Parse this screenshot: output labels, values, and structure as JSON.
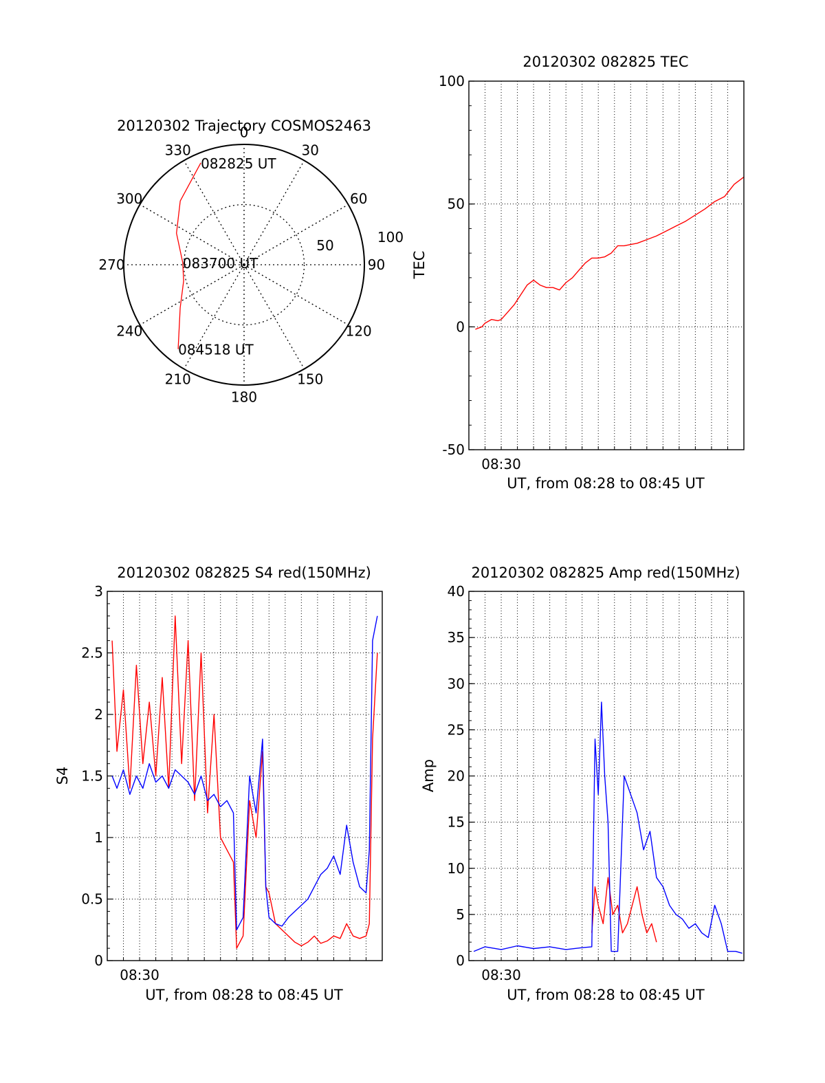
{
  "colors": {
    "red": "#ff0000",
    "blue": "#0000ff",
    "axis": "#000000",
    "grid": "#000000"
  },
  "chart_data": [
    {
      "type": "polar",
      "title": "20120302 Trajectory COSMOS2463",
      "angle_labels": [
        "0",
        "30",
        "60",
        "90",
        "120",
        "150",
        "180",
        "210",
        "240",
        "270",
        "300",
        "330"
      ],
      "radius_labels": [
        "50",
        "100"
      ],
      "radius_max": 100,
      "track_color": "red",
      "track": [
        {
          "az": 337,
          "r": 92
        },
        {
          "az": 315,
          "r": 75
        },
        {
          "az": 295,
          "r": 62
        },
        {
          "az": 272,
          "r": 51
        },
        {
          "az": 255,
          "r": 52
        },
        {
          "az": 236,
          "r": 64
        },
        {
          "az": 218,
          "r": 89
        }
      ],
      "annotations": [
        {
          "text": "082825 UT",
          "az": 337,
          "r": 92
        },
        {
          "text": "083700 UT",
          "az": 272,
          "r": 51
        },
        {
          "text": "084518 UT",
          "az": 218,
          "r": 89
        }
      ]
    },
    {
      "type": "line",
      "title": "20120302 082825 TEC",
      "xlabel": "UT, from 08:28 to 08:45 UT",
      "ylabel": "TEC",
      "x_unit": "minutes after 08:28",
      "xlim": [
        0,
        17
      ],
      "ylim": [
        -50,
        100
      ],
      "y_ticks": [
        -50,
        0,
        50,
        100
      ],
      "x_tick_labels": [
        {
          "x": 2,
          "label": "08:30"
        }
      ],
      "series": [
        {
          "name": "TEC",
          "color": "red",
          "x": [
            0.4,
            0.8,
            1.0,
            1.4,
            1.8,
            2.0,
            2.4,
            2.8,
            3.2,
            3.6,
            4.0,
            4.4,
            4.8,
            5.2,
            5.6,
            6.0,
            6.4,
            6.8,
            7.2,
            7.6,
            8.0,
            8.4,
            8.8,
            9.2,
            9.6,
            10.0,
            10.4,
            11.0,
            11.6,
            12.2,
            12.8,
            13.4,
            14.0,
            14.6,
            15.2,
            15.8,
            16.4,
            17.0
          ],
          "y": [
            -1,
            0,
            1.5,
            3,
            2.5,
            3,
            6,
            9,
            13,
            17,
            19,
            17,
            16,
            16,
            15,
            18,
            20,
            23,
            26,
            28,
            28,
            28.5,
            30,
            33,
            33,
            33.5,
            34,
            35.5,
            37,
            39,
            41,
            43,
            45.5,
            48,
            51,
            53,
            58,
            61
          ]
        }
      ]
    },
    {
      "type": "line",
      "title": "20120302 082825 S4 red(150MHz)",
      "xlabel": "UT, from 08:28 to 08:45 UT",
      "ylabel": "S4",
      "x_unit": "minutes after 08:28",
      "xlim": [
        0,
        17
      ],
      "ylim": [
        0,
        3
      ],
      "y_ticks": [
        0,
        0.5,
        1,
        1.5,
        2,
        2.5,
        3
      ],
      "x_tick_labels": [
        {
          "x": 2,
          "label": "08:30"
        }
      ],
      "series": [
        {
          "name": "red (150MHz)",
          "color": "red",
          "x": [
            0.3,
            0.6,
            1.0,
            1.4,
            1.8,
            2.2,
            2.6,
            3.0,
            3.4,
            3.8,
            4.2,
            4.6,
            5.0,
            5.4,
            5.8,
            6.2,
            6.6,
            7.0,
            7.4,
            7.8,
            8.0,
            8.2,
            8.4,
            8.8,
            9.2,
            9.6,
            9.8,
            10.0,
            10.4,
            10.8,
            11.2,
            11.6,
            12.0,
            12.4,
            12.8,
            13.2,
            13.6,
            14.0,
            14.4,
            14.8,
            15.2,
            15.6,
            16.0,
            16.2,
            16.4,
            16.7
          ],
          "y": [
            2.6,
            1.7,
            2.2,
            1.4,
            2.4,
            1.6,
            2.1,
            1.5,
            2.3,
            1.4,
            2.8,
            1.6,
            2.6,
            1.3,
            2.5,
            1.2,
            2.0,
            1.0,
            0.9,
            0.8,
            0.1,
            0.15,
            0.2,
            1.3,
            1.0,
            1.7,
            0.6,
            0.55,
            0.3,
            0.25,
            0.2,
            0.15,
            0.12,
            0.15,
            0.2,
            0.14,
            0.16,
            0.2,
            0.18,
            0.3,
            0.2,
            0.18,
            0.2,
            0.3,
            1.8,
            2.5
          ]
        },
        {
          "name": "blue",
          "color": "blue",
          "x": [
            0.3,
            0.6,
            1.0,
            1.4,
            1.8,
            2.2,
            2.6,
            3.0,
            3.4,
            3.8,
            4.2,
            4.6,
            5.0,
            5.4,
            5.8,
            6.2,
            6.6,
            7.0,
            7.4,
            7.8,
            8.0,
            8.2,
            8.4,
            8.8,
            9.2,
            9.6,
            9.8,
            10.0,
            10.4,
            10.8,
            11.2,
            11.6,
            12.0,
            12.4,
            12.8,
            13.2,
            13.6,
            14.0,
            14.4,
            14.8,
            15.2,
            15.6,
            16.0,
            16.2,
            16.4,
            16.7
          ],
          "y": [
            1.5,
            1.4,
            1.55,
            1.35,
            1.5,
            1.4,
            1.6,
            1.45,
            1.5,
            1.4,
            1.55,
            1.5,
            1.45,
            1.35,
            1.5,
            1.3,
            1.35,
            1.25,
            1.3,
            1.2,
            0.25,
            0.3,
            0.35,
            1.5,
            1.2,
            1.8,
            0.6,
            0.35,
            0.3,
            0.28,
            0.35,
            0.4,
            0.45,
            0.5,
            0.6,
            0.7,
            0.75,
            0.85,
            0.7,
            1.1,
            0.8,
            0.6,
            0.55,
            0.9,
            2.6,
            2.8
          ]
        }
      ]
    },
    {
      "type": "line",
      "title": "20120302 082825 Amp red(150MHz)",
      "xlabel": "UT, from 08:28 to 08:45 UT",
      "ylabel": "Amp",
      "x_unit": "minutes after 08:28",
      "xlim": [
        0,
        17
      ],
      "ylim": [
        0,
        40
      ],
      "y_ticks": [
        0,
        5,
        10,
        15,
        20,
        25,
        30,
        35,
        40
      ],
      "x_tick_labels": [
        {
          "x": 2,
          "label": "08:30"
        }
      ],
      "series": [
        {
          "name": "red (150MHz)",
          "color": "red",
          "x": [
            7.6,
            7.8,
            8.0,
            8.3,
            8.6,
            8.9,
            9.2,
            9.5,
            9.8,
            10.1,
            10.4,
            10.7,
            11.0,
            11.3,
            11.6
          ],
          "y": [
            3,
            8,
            6,
            4,
            9,
            5,
            6,
            3,
            4,
            6,
            8,
            5,
            3,
            4,
            2
          ]
        },
        {
          "name": "blue",
          "color": "blue",
          "x": [
            0.3,
            1.0,
            2.0,
            3.0,
            4.0,
            5.0,
            6.0,
            7.0,
            7.6,
            7.8,
            8.0,
            8.2,
            8.4,
            8.6,
            8.8,
            9.2,
            9.6,
            10.0,
            10.4,
            10.8,
            11.2,
            11.6,
            12.0,
            12.4,
            12.8,
            13.2,
            13.6,
            14.0,
            14.4,
            14.8,
            15.2,
            15.6,
            16.0,
            16.5,
            16.9
          ],
          "y": [
            1,
            1.5,
            1.2,
            1.6,
            1.3,
            1.5,
            1.2,
            1.4,
            1.5,
            24,
            18,
            28,
            20,
            15,
            1,
            1,
            20,
            18,
            16,
            12,
            14,
            9,
            8,
            6,
            5,
            4.5,
            3.5,
            4,
            3,
            2.5,
            6,
            4,
            1,
            1,
            0.8
          ]
        }
      ]
    }
  ]
}
